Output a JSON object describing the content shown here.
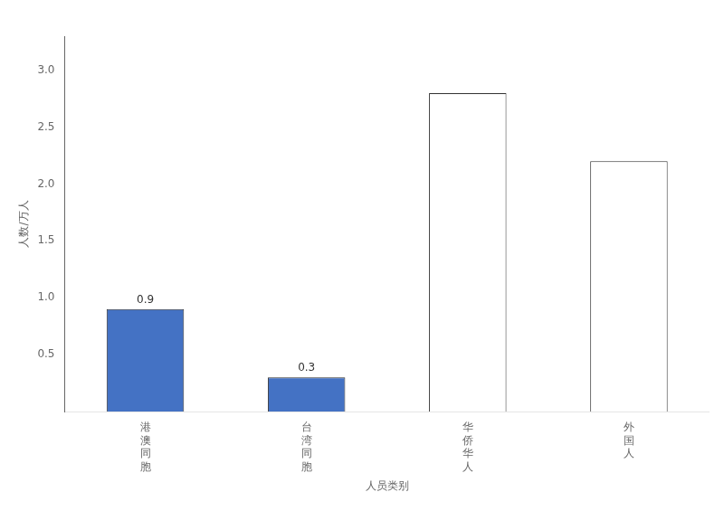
{
  "chart_data": {
    "type": "bar",
    "categories": [
      "港澳同胞",
      "台湾同胞",
      "华侨华人",
      "外国人"
    ],
    "values": [
      0.9,
      0.3,
      2.8,
      2.2
    ],
    "value_labels": [
      "0.9",
      "0.3",
      null,
      null
    ],
    "data_labels": true,
    "colors": [
      "#4472c4",
      "#4472c4",
      "#ffffff",
      "#ffffff"
    ],
    "y_label": "人数/万人",
    "x_label": "人员类别",
    "ylim": [
      0,
      3.3
    ],
    "yticks": [
      0.5,
      {
        "value": 1.0,
        "label": "1.0"
      },
      1.5,
      {
        "value": 2.0,
        "label": "2.0"
      },
      2.5,
      {
        "value": 3.0,
        "label": "3.0"
      }
    ],
    "grid": false
  }
}
